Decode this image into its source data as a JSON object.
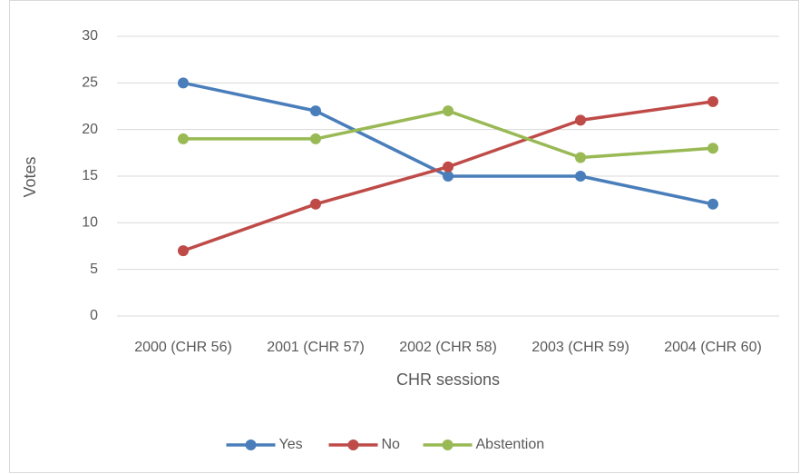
{
  "chart_data": {
    "type": "line",
    "categories": [
      "2000 (CHR 56)",
      "2001 (CHR 57)",
      "2002 (CHR 58)",
      "2003 (CHR 59)",
      "2004 (CHR 60)"
    ],
    "series": [
      {
        "name": "Yes",
        "color": "#4a7ebb",
        "values": [
          25,
          22,
          15,
          15,
          12
        ]
      },
      {
        "name": "No",
        "color": "#be4b48",
        "values": [
          7,
          12,
          16,
          21,
          23
        ]
      },
      {
        "name": "Abstention",
        "color": "#98b954",
        "values": [
          19,
          19,
          22,
          17,
          18
        ]
      }
    ],
    "x_label": "CHR sessions",
    "y_label": "Votes",
    "ylim": [
      0,
      30
    ],
    "yticks": [
      0,
      5,
      10,
      15,
      20,
      25,
      30
    ],
    "grid": true,
    "legend": "bottom"
  }
}
